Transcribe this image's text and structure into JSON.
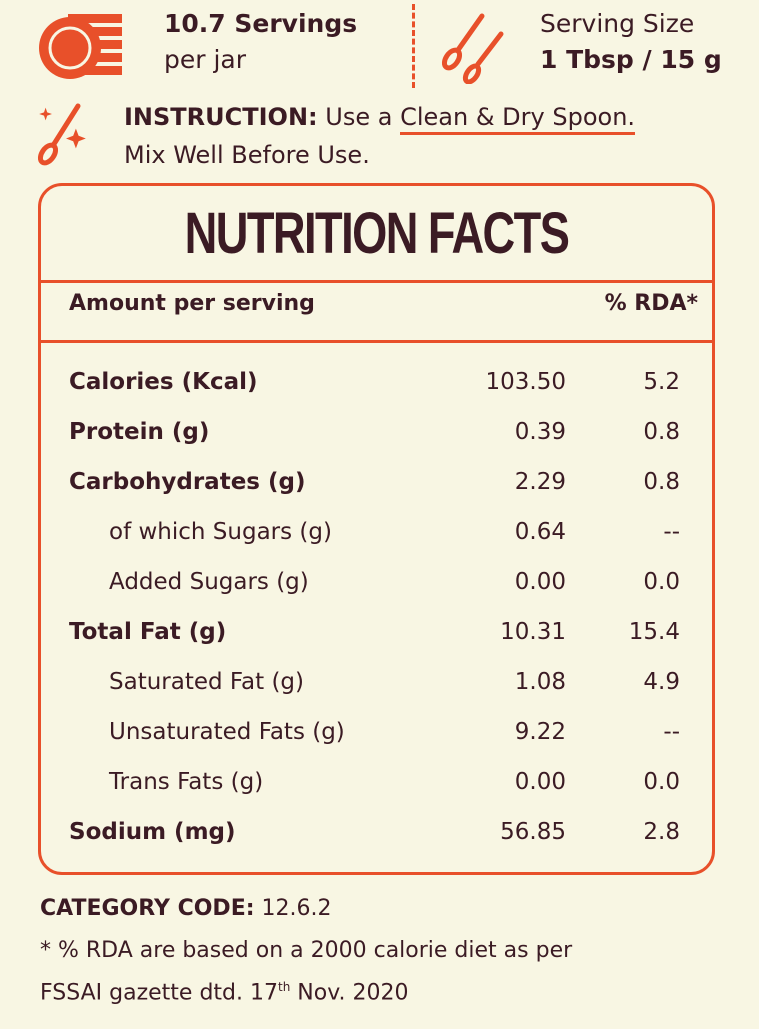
{
  "servings": {
    "line1": "10.7 Servings",
    "line2": "per jar",
    "icon": "plates-stack-icon"
  },
  "serving_size": {
    "label": "Serving Size",
    "value": "1 Tbsp / 15 g",
    "icon": "spoons-icon"
  },
  "instruction": {
    "label": "INSTRUCTION:",
    "text_prefix": "Use a",
    "text_underlined": "Clean & Dry Spoon.",
    "line2": "Mix Well Before Use.",
    "icon": "sparkle-spoon-icon"
  },
  "facts": {
    "title": "NUTRITION FACTS",
    "header_amount": "Amount per serving",
    "header_rda": "% RDA*",
    "rows": [
      {
        "label": "Calories (Kcal)",
        "value": "103.50",
        "rda": "5.2",
        "sub": false
      },
      {
        "label": "Protein (g)",
        "value": "0.39",
        "rda": "0.8",
        "sub": false
      },
      {
        "label": "Carbohydrates (g)",
        "value": "2.29",
        "rda": "0.8",
        "sub": false
      },
      {
        "label": "of which Sugars (g)",
        "value": "0.64",
        "rda": "--",
        "sub": true
      },
      {
        "label": "Added Sugars (g)",
        "value": "0.00",
        "rda": "0.0",
        "sub": true
      },
      {
        "label": "Total Fat (g)",
        "value": "10.31",
        "rda": "15.4",
        "sub": false
      },
      {
        "label": "Saturated Fat (g)",
        "value": "1.08",
        "rda": "4.9",
        "sub": true
      },
      {
        "label": "Unsaturated Fats (g)",
        "value": "9.22",
        "rda": "--",
        "sub": true
      },
      {
        "label": "Trans Fats (g)",
        "value": "0.00",
        "rda": "0.0",
        "sub": true
      },
      {
        "label": "Sodium (mg)",
        "value": "56.85",
        "rda": "2.8",
        "sub": false
      }
    ]
  },
  "footer": {
    "category_label": "CATEGORY CODE:",
    "category_value": "12.6.2",
    "note_line1": "* % RDA are based on a 2000 calorie diet as per",
    "note_line2_prefix": "FSSAI gazette dtd. 17",
    "note_line2_sup": "th",
    "note_line2_suffix": "Nov. 2020"
  },
  "colors": {
    "accent": "#e8502a",
    "text": "#3b1b24",
    "background": "#f8f6e3"
  }
}
